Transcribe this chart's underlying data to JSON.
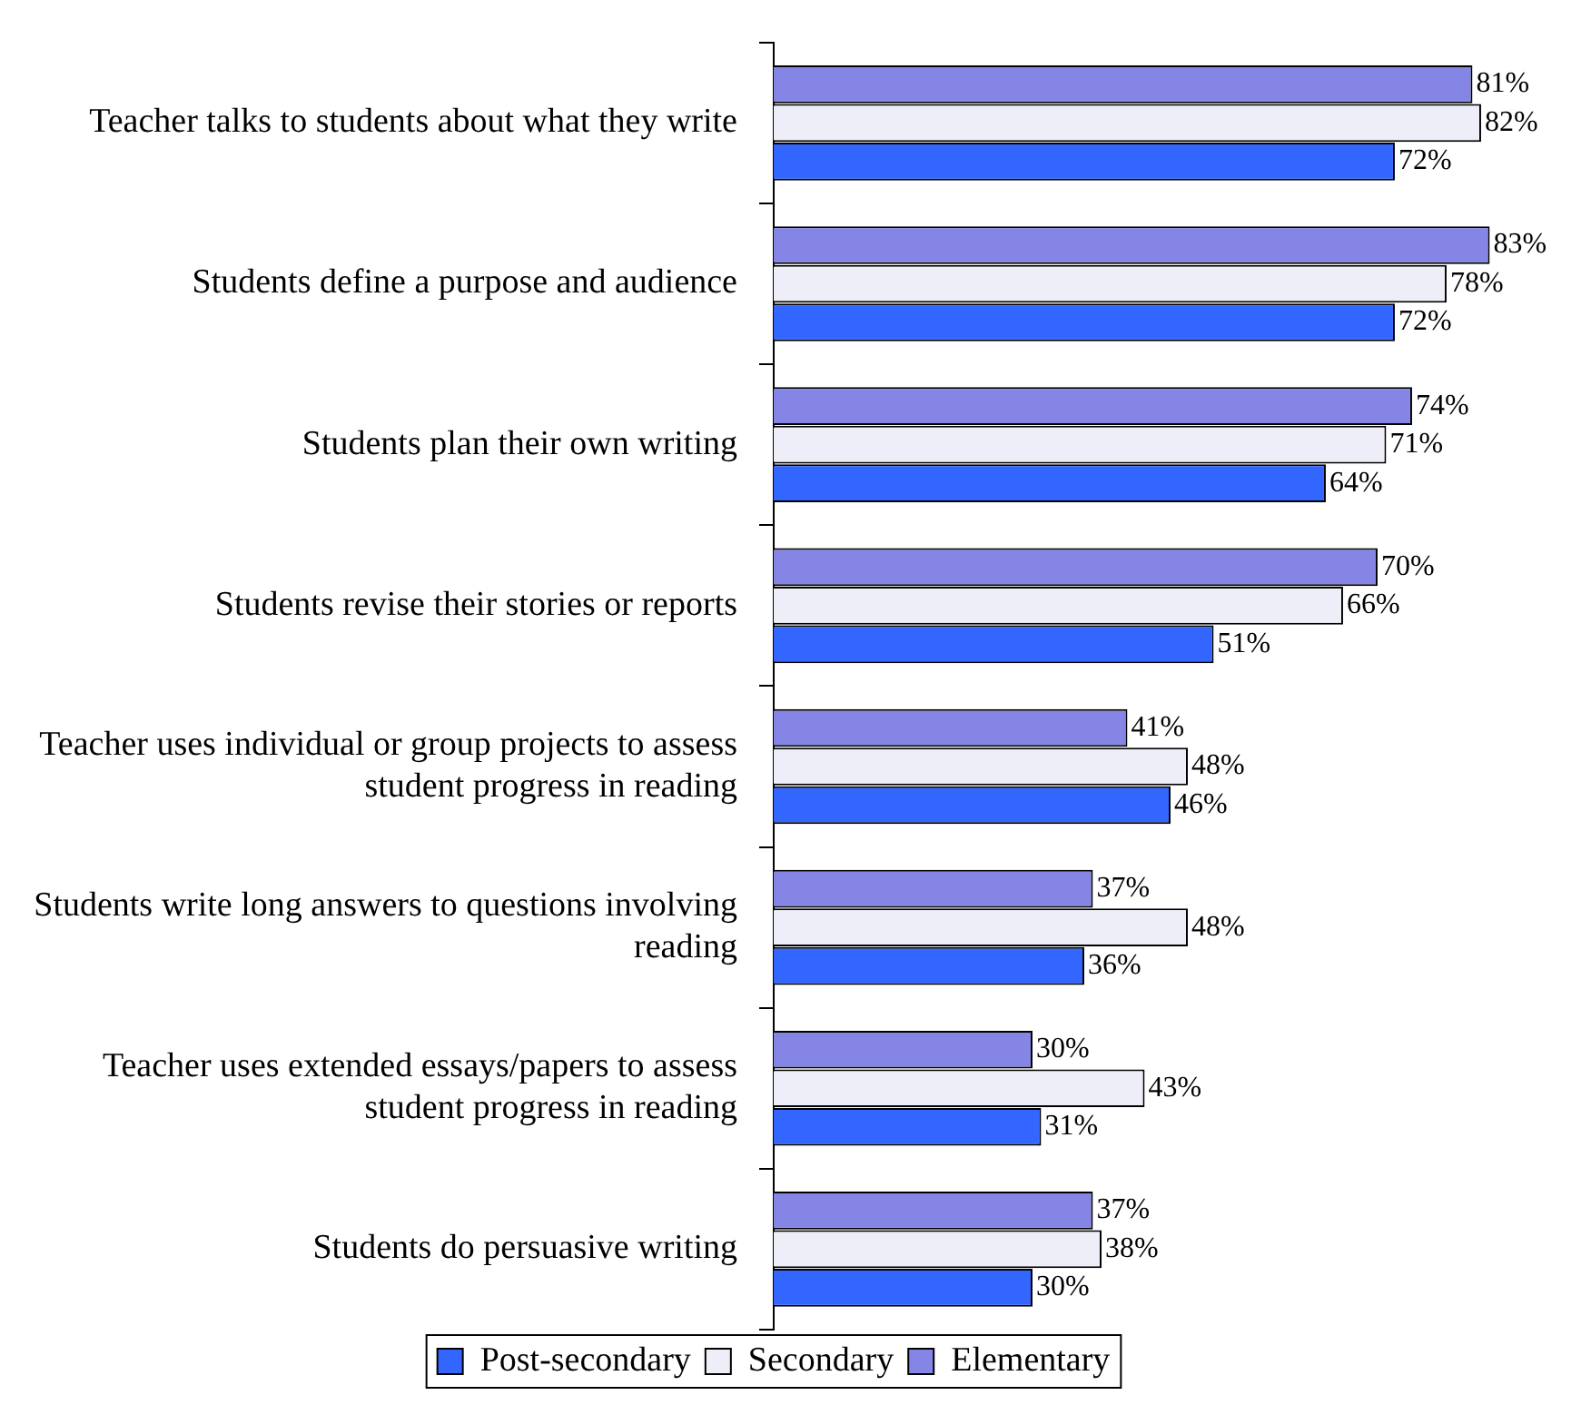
{
  "chart_data": {
    "type": "bar",
    "orientation": "horizontal",
    "legend": "bottom",
    "categories": [
      "Teacher talks to students about what they write",
      "Students define a purpose and audience",
      "Students plan their own writing",
      "Students revise their stories or reports",
      "Teacher uses individual or group projects to assess student progress in reading",
      "Students write long answers to questions involving reading",
      "Teacher uses extended essays/papers to assess student progress in reading",
      "Students do persuasive writing"
    ],
    "series": [
      {
        "name": "Elementary",
        "color": "#8585e6",
        "values": [
          81,
          83,
          74,
          70,
          41,
          37,
          30,
          37
        ],
        "value_labels": [
          "81%",
          "83%",
          "74%",
          "70%",
          "41%",
          "37%",
          "30%",
          "37%"
        ]
      },
      {
        "name": "Secondary",
        "color": "#eeeef8",
        "values": [
          82,
          78,
          71,
          66,
          48,
          48,
          43,
          38
        ],
        "value_labels": [
          "82%",
          "78%",
          "71%",
          "66%",
          "48%",
          "48%",
          "43%",
          "38%"
        ]
      },
      {
        "name": "Post-secondary",
        "color": "#3366ff",
        "values": [
          72,
          72,
          64,
          51,
          46,
          36,
          31,
          30
        ],
        "value_labels": [
          "72%",
          "72%",
          "64%",
          "51%",
          "46%",
          "36%",
          "31%",
          "30%"
        ]
      }
    ]
  }
}
